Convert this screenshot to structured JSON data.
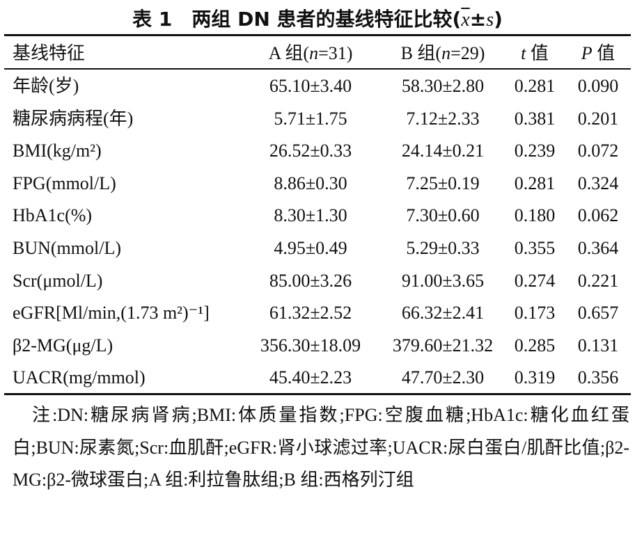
{
  "title": {
    "prefix": "表 1　两组 DN 患者的基线特征比较(",
    "xbar": "x",
    "pm": "±",
    "s": "s",
    "suffix": ")"
  },
  "table": {
    "headers": {
      "feature": "基线特征",
      "group_a_label": "A 组(",
      "group_a_n": "n",
      "group_a_count": "=31)",
      "group_b_label": "B 组(",
      "group_b_n": "n",
      "group_b_count": "=29)",
      "t_symbol": "t",
      "t_suffix": " 值",
      "p_symbol": "P",
      "p_suffix": " 值"
    },
    "rows": [
      {
        "feature": "年龄(岁)",
        "a": "65.10±3.40",
        "b": "58.30±2.80",
        "t": "0.281",
        "p": "0.090"
      },
      {
        "feature": "糖尿病病程(年)",
        "a": "5.71±1.75",
        "b": "7.12±2.33",
        "t": "0.381",
        "p": "0.201"
      },
      {
        "feature": "BMI(kg/m²)",
        "a": "26.52±0.33",
        "b": "24.14±0.21",
        "t": "0.239",
        "p": "0.072"
      },
      {
        "feature": "FPG(mmol/L)",
        "a": "8.86±0.30",
        "b": "7.25±0.19",
        "t": "0.281",
        "p": "0.324"
      },
      {
        "feature": "HbA1c(%)",
        "a": "8.30±1.30",
        "b": "7.30±0.60",
        "t": "0.180",
        "p": "0.062"
      },
      {
        "feature": "BUN(mmol/L)",
        "a": "4.95±0.49",
        "b": "5.29±0.33",
        "t": "0.355",
        "p": "0.364"
      },
      {
        "feature": "Scr(μmol/L)",
        "a": "85.00±3.26",
        "b": "91.00±3.65",
        "t": "0.274",
        "p": "0.221"
      },
      {
        "feature": "eGFR[Ml/min,(1.73 m²)⁻¹]",
        "a": "61.32±2.52",
        "b": "66.32±2.41",
        "t": "0.173",
        "p": "0.657"
      },
      {
        "feature": "β2-MG(μg/L)",
        "a": "356.30±18.09",
        "b": "379.60±21.32",
        "t": "0.285",
        "p": "0.131"
      },
      {
        "feature": "UACR(mg/mmol)",
        "a": "45.40±2.23",
        "b": "47.70±2.30",
        "t": "0.319",
        "p": "0.356"
      }
    ]
  },
  "note": "注:DN:糖尿病肾病;BMI:体质量指数;FPG:空腹血糖;HbA1c:糖化血红蛋白;BUN:尿素氮;Scr:血肌酐;eGFR:肾小球滤过率;UACR:尿白蛋白/肌酐比值;β2-MG:β2-微球蛋白;A 组:利拉鲁肽组;B 组:西格列汀组"
}
